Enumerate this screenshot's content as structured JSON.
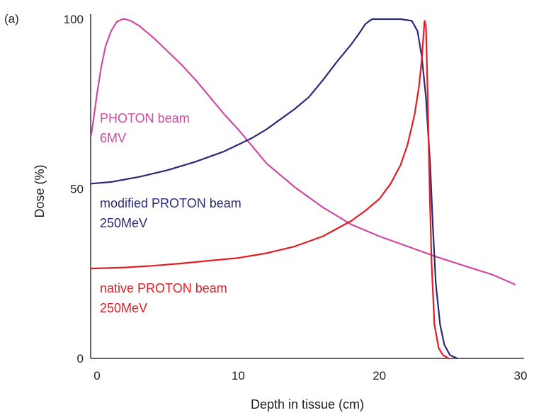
{
  "chart_data": {
    "type": "line",
    "panel_label": "(a)",
    "xlabel": "Depth in tissue (cm)",
    "ylabel": "Dose (%)",
    "xlim": [
      0,
      30
    ],
    "ylim": [
      0,
      100
    ],
    "x_ticks": [
      0,
      10,
      20,
      30
    ],
    "y_ticks": [
      0,
      50,
      100
    ],
    "grid": false,
    "legend": "inline labels",
    "series": [
      {
        "name": "PHOTON beam 6MV",
        "label_lines": [
          "PHOTON beam",
          "6MV"
        ],
        "color": "#cc4aa3",
        "x": [
          -0.4,
          0.0,
          0.3,
          0.6,
          1.0,
          1.4,
          1.8,
          2.0,
          2.4,
          3.0,
          4.0,
          5.0,
          6.0,
          7.0,
          8.0,
          9.0,
          10.0,
          11.0,
          12.0,
          14.0,
          16.0,
          18.0,
          20.0,
          22.0,
          24.0,
          26.0,
          28.0,
          29.6
        ],
        "y": [
          66,
          78,
          86,
          92,
          96.5,
          99.2,
          100,
          100,
          99.5,
          98,
          94.5,
          90.5,
          86.5,
          82,
          77,
          72,
          67.5,
          62.5,
          57.5,
          50.5,
          44.5,
          39.5,
          36,
          33,
          30,
          27.3,
          24.7,
          21.8
        ]
      },
      {
        "name": "modified PROTON beam 250MeV",
        "label_lines": [
          "modified PROTON beam",
          "250MeV"
        ],
        "color": "#2b2a78",
        "x": [
          -0.4,
          1.0,
          3.0,
          5.0,
          7.0,
          9.0,
          10.0,
          11.0,
          12.0,
          13.0,
          14.0,
          15.0,
          16.0,
          17.0,
          18.0,
          18.6,
          19.0,
          19.3,
          19.5,
          19.8,
          20.5,
          21.5,
          22.3,
          22.7,
          23.0,
          23.3,
          23.6,
          23.8,
          24.0,
          24.3,
          24.6,
          25.0,
          25.5
        ],
        "y": [
          51.5,
          52,
          53.5,
          55.5,
          58,
          61,
          63,
          65,
          67.5,
          70.5,
          73.5,
          77,
          82,
          87.5,
          92.5,
          96,
          98.5,
          99.5,
          100,
          100,
          100,
          100,
          99.5,
          96.5,
          89,
          77,
          57,
          38,
          22,
          10,
          4,
          1,
          0
        ]
      },
      {
        "name": "native PROTON beam 250MeV",
        "label_lines": [
          "native PROTON beam",
          "250MeV"
        ],
        "color": "#e31b23",
        "x": [
          -0.4,
          2.0,
          4.0,
          6.0,
          8.0,
          10.0,
          12.0,
          14.0,
          16.0,
          18.0,
          19.0,
          20.0,
          20.8,
          21.5,
          22.0,
          22.5,
          22.8,
          23.0,
          23.1,
          23.2,
          23.3,
          23.4,
          23.55,
          23.7,
          23.9,
          24.2,
          24.5,
          24.9
        ],
        "y": [
          26.5,
          26.8,
          27.3,
          28,
          28.8,
          29.6,
          31,
          33,
          36,
          40.5,
          43.5,
          47,
          51.5,
          57,
          63,
          72,
          80,
          88,
          94,
          99.5,
          98,
          82,
          52,
          28,
          10,
          3,
          1,
          0
        ]
      }
    ]
  }
}
